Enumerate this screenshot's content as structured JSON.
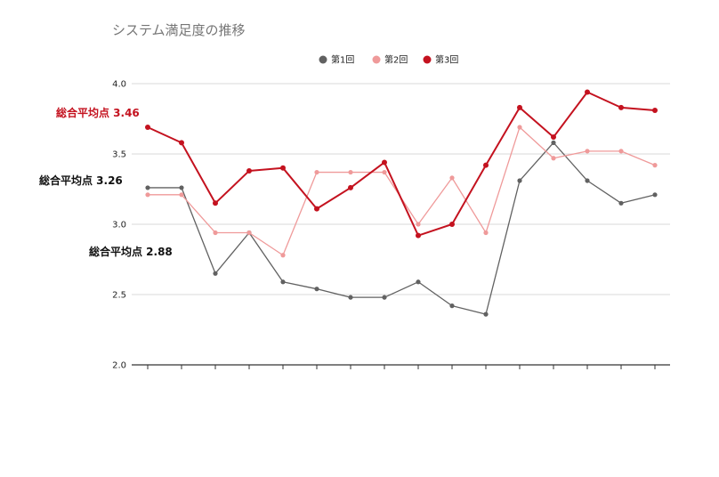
{
  "chart_data": {
    "type": "line",
    "title": "システム満足度の推移",
    "xlabel": "",
    "ylabel": "",
    "ylim": [
      2.0,
      4.0
    ],
    "yticks": [
      "2.0",
      "2.5",
      "3.0",
      "3.5",
      "4.0"
    ],
    "grid": true,
    "legend_position": "top",
    "categories": [
      "",
      "",
      "",
      "",
      "",
      "",
      "",
      "",
      "",
      "",
      "",
      "",
      "",
      "",
      "",
      ""
    ],
    "series": [
      {
        "name": "第1回",
        "color": "#616161",
        "values": [
          3.26,
          3.26,
          2.65,
          2.94,
          2.59,
          2.54,
          2.48,
          2.48,
          2.59,
          2.42,
          2.36,
          3.31,
          3.58,
          3.31,
          3.15,
          3.21
        ]
      },
      {
        "name": "第2回",
        "color": "#ef9a9a",
        "values": [
          3.21,
          3.21,
          2.94,
          2.94,
          2.78,
          3.37,
          3.37,
          3.37,
          3.0,
          3.33,
          2.94,
          3.69,
          3.47,
          3.52,
          3.52,
          3.42
        ]
      },
      {
        "name": "第3回",
        "color": "#c4121f",
        "values": [
          3.69,
          3.58,
          3.15,
          3.38,
          3.4,
          3.11,
          3.26,
          3.44,
          2.92,
          3.0,
          3.42,
          3.83,
          3.62,
          3.94,
          3.83,
          3.81
        ]
      }
    ],
    "annotations": [
      {
        "text": "総合平均点 3.46",
        "color": "#c4121f",
        "series": "第3回"
      },
      {
        "text": "総合平均点 3.26",
        "color": "#111111",
        "series": "第2回"
      },
      {
        "text": "総合平均点 2.88",
        "color": "#111111",
        "series": "第1回"
      }
    ]
  }
}
